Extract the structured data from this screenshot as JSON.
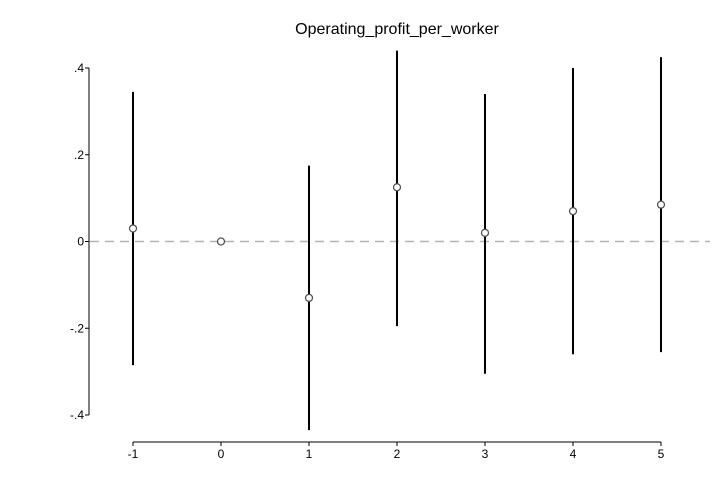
{
  "chart_data": {
    "type": "scatter",
    "title": "Operating_profit_per_worker",
    "xlabel": "",
    "ylabel": "",
    "x": [
      -1,
      0,
      1,
      2,
      3,
      4,
      5
    ],
    "x_tick_labels": [
      "-1",
      "0",
      "1",
      "2",
      "3",
      "4",
      "5"
    ],
    "y_tick_labels": [
      ".4",
      ".2",
      "0",
      "-.2",
      "-.4"
    ],
    "y_ticks": [
      0.4,
      0.2,
      0,
      -0.2,
      -0.4
    ],
    "ylim": [
      -0.4,
      0.4
    ],
    "xlim": [
      -1,
      5
    ],
    "series": [
      {
        "estimates": [
          0.03,
          0.0,
          -0.13,
          0.125,
          0.02,
          0.07,
          0.085
        ],
        "ci_lower": [
          -0.285,
          0.0,
          -0.435,
          -0.195,
          -0.305,
          -0.26,
          -0.255
        ],
        "ci_upper": [
          0.345,
          0.0,
          0.175,
          0.44,
          0.34,
          0.4,
          0.425
        ]
      }
    ],
    "reference_line": {
      "y": 0,
      "style": "dashed",
      "color": "#b3b3b3"
    },
    "grid": false,
    "colors": {
      "marker": "#555555",
      "ci": "#000000",
      "axis": "#000000"
    }
  }
}
